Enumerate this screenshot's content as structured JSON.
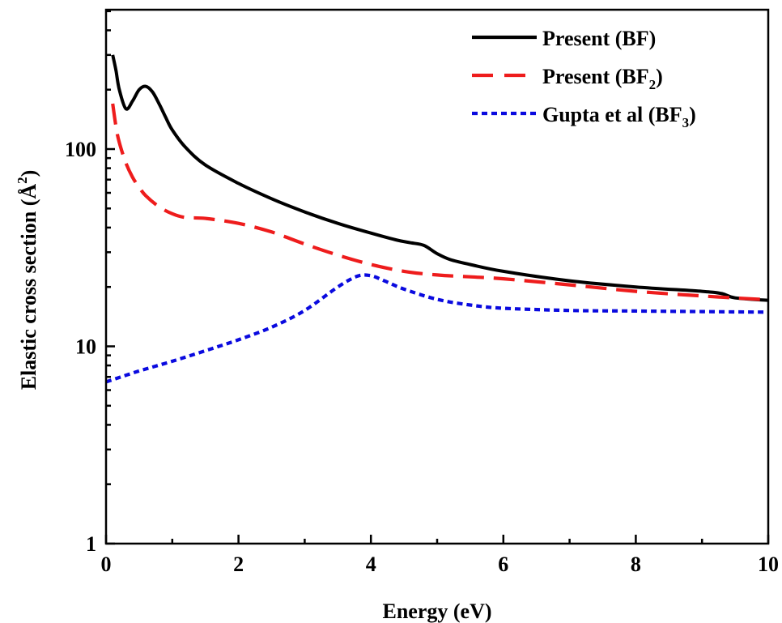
{
  "chart_data": {
    "type": "line",
    "xlabel": "Energy (eV)",
    "ylabel": "Elastic cross section  (Å²)",
    "ylabel_main": "Elastic cross section  (Å",
    "ylabel_sup": "2",
    "ylabel_close": ")",
    "xlim": [
      0,
      10
    ],
    "ylim": [
      1,
      500
    ],
    "yscale": "log",
    "grid": false,
    "legend_position": "top-right",
    "x_ticks": [
      {
        "value": 0,
        "label": "0"
      },
      {
        "value": 2,
        "label": "2"
      },
      {
        "value": 4,
        "label": "4"
      },
      {
        "value": 6,
        "label": "6"
      },
      {
        "value": 8,
        "label": "8"
      },
      {
        "value": 10,
        "label": "10"
      }
    ],
    "y_ticks": [
      {
        "value": 1,
        "label": "1"
      },
      {
        "value": 10,
        "label": "10"
      },
      {
        "value": 100,
        "label": "100"
      }
    ],
    "series": [
      {
        "name": "Present (BF)",
        "legend_main": "Present (BF)",
        "legend_sub": "",
        "legend_close": "",
        "color": "#000000",
        "style": "solid",
        "x": [
          0.1,
          0.15,
          0.2,
          0.3,
          0.4,
          0.5,
          0.6,
          0.7,
          0.8,
          0.9,
          1.0,
          1.2,
          1.5,
          2.0,
          2.5,
          3.0,
          3.5,
          4.0,
          4.4,
          4.6,
          4.8,
          5.0,
          5.2,
          5.5,
          6.0,
          7.0,
          8.0,
          9.0,
          9.3,
          9.5,
          10.0
        ],
        "y": [
          300,
          250,
          200,
          160,
          175,
          200,
          208,
          195,
          170,
          145,
          125,
          102,
          83,
          67,
          56,
          48,
          42,
          37.5,
          34.5,
          33.5,
          32.5,
          29.5,
          27.5,
          26,
          24,
          21.5,
          20,
          19,
          18.5,
          17.6,
          17.1
        ]
      },
      {
        "name": "Present (BF₂)",
        "legend_main": "Present (BF",
        "legend_sub": "2",
        "legend_close": ")",
        "color": "#ee1c1c",
        "style": "dashed",
        "x": [
          0.1,
          0.15,
          0.2,
          0.3,
          0.4,
          0.5,
          0.6,
          0.8,
          1.0,
          1.2,
          1.5,
          2.0,
          2.5,
          3.0,
          3.5,
          4.0,
          4.5,
          5.0,
          5.5,
          6.0,
          7.0,
          8.0,
          9.0,
          10.0
        ],
        "y": [
          170,
          130,
          108,
          85,
          72,
          64,
          58,
          51,
          47,
          45,
          44.5,
          42,
          38,
          33,
          29,
          26,
          24,
          23,
          22.5,
          22,
          20.5,
          19,
          18,
          17.2
        ]
      },
      {
        "name": "Gupta et al (BF₃)",
        "legend_main": "Gupta et al  (BF",
        "legend_sub": "3",
        "legend_close": ")",
        "color": "#0a0adf",
        "style": "dotted",
        "x": [
          0.0,
          0.5,
          1.0,
          1.5,
          2.0,
          2.5,
          3.0,
          3.5,
          3.8,
          4.0,
          4.2,
          4.5,
          5.0,
          5.5,
          6.0,
          7.0,
          8.0,
          9.0,
          10.0
        ],
        "y": [
          6.6,
          7.5,
          8.4,
          9.5,
          10.8,
          12.5,
          15.2,
          20,
          22.7,
          22.8,
          21.5,
          19.5,
          17.3,
          16.2,
          15.6,
          15.2,
          15.1,
          15.0,
          14.9
        ]
      }
    ]
  }
}
